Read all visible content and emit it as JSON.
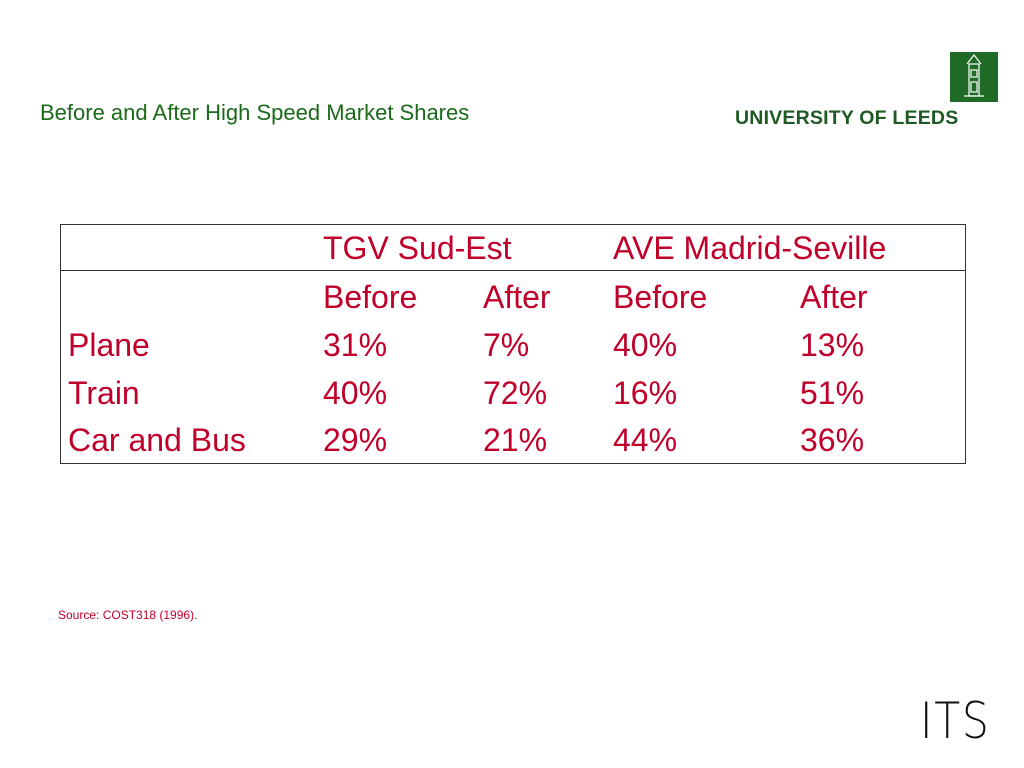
{
  "header": {
    "title": "Before and After High Speed Market Shares",
    "logo": "UNIVERSITY OF LEEDS"
  },
  "table": {
    "groups": [
      "TGV Sud-Est",
      "AVE Madrid-Seville"
    ],
    "subheaders": [
      "Before",
      "After",
      "Before",
      "After"
    ],
    "rows": [
      [
        "Plane",
        "31%",
        "7%",
        "40%",
        "13%"
      ],
      [
        "Train",
        "40%",
        "72%",
        "16%",
        "51%"
      ],
      [
        "Car and Bus",
        "29%",
        "21%",
        "44%",
        "36%"
      ]
    ]
  },
  "source": "Source: COST318 (1996).",
  "footer_logo": "ITS"
}
